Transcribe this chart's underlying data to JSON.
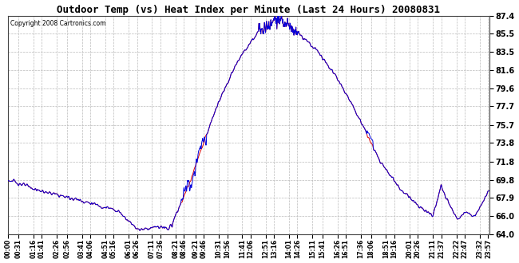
{
  "title": "Outdoor Temp (vs) Heat Index per Minute (Last 24 Hours) 20080831",
  "copyright": "Copyright 2008 Cartronics.com",
  "y_min": 64.0,
  "y_max": 87.4,
  "y_ticks": [
    64.0,
    66.0,
    67.9,
    69.8,
    71.8,
    73.8,
    75.7,
    77.7,
    79.6,
    81.6,
    83.5,
    85.5,
    87.4
  ],
  "background_color": "#ffffff",
  "plot_bg_color": "#ffffff",
  "grid_color": "#bbbbbb",
  "line_color_red": "#dd0000",
  "line_color_blue": "#0000dd",
  "x_tick_labels": [
    "00:00",
    "00:31",
    "01:16",
    "01:41",
    "02:26",
    "02:56",
    "03:41",
    "04:06",
    "04:51",
    "05:16",
    "06:01",
    "06:26",
    "07:11",
    "07:36",
    "08:21",
    "08:46",
    "09:21",
    "09:46",
    "10:31",
    "10:56",
    "11:41",
    "12:06",
    "12:51",
    "13:16",
    "14:01",
    "14:26",
    "15:11",
    "15:41",
    "16:26",
    "16:51",
    "17:36",
    "18:06",
    "18:51",
    "19:16",
    "20:01",
    "20:26",
    "21:11",
    "21:37",
    "22:22",
    "22:47",
    "23:32",
    "23:57"
  ],
  "x_tick_times_h": [
    0.0,
    0.517,
    1.267,
    1.683,
    2.433,
    2.933,
    3.683,
    4.1,
    4.85,
    5.267,
    6.017,
    6.433,
    7.183,
    7.6,
    8.35,
    8.767,
    9.35,
    9.767,
    10.517,
    10.933,
    11.683,
    12.1,
    12.85,
    13.267,
    14.017,
    14.433,
    15.183,
    15.683,
    16.433,
    16.85,
    17.6,
    18.1,
    18.85,
    19.267,
    20.017,
    20.433,
    21.183,
    21.617,
    22.367,
    22.783,
    23.533,
    23.95
  ]
}
